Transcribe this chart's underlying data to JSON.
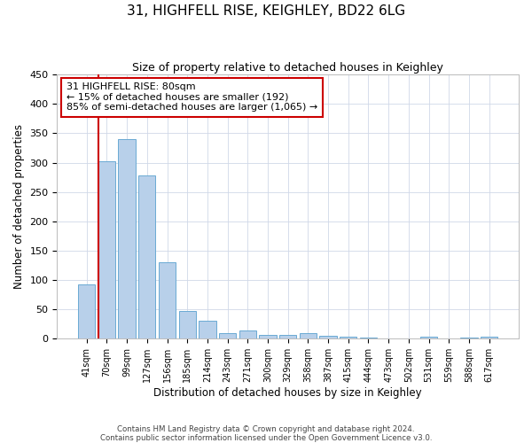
{
  "title": "31, HIGHFELL RISE, KEIGHLEY, BD22 6LG",
  "subtitle": "Size of property relative to detached houses in Keighley",
  "xlabel": "Distribution of detached houses by size in Keighley",
  "ylabel": "Number of detached properties",
  "categories": [
    "41sqm",
    "70sqm",
    "99sqm",
    "127sqm",
    "156sqm",
    "185sqm",
    "214sqm",
    "243sqm",
    "271sqm",
    "300sqm",
    "329sqm",
    "358sqm",
    "387sqm",
    "415sqm",
    "444sqm",
    "473sqm",
    "502sqm",
    "531sqm",
    "559sqm",
    "588sqm",
    "617sqm"
  ],
  "values": [
    92,
    303,
    340,
    278,
    131,
    47,
    31,
    10,
    14,
    6,
    6,
    10,
    5,
    3,
    2,
    0,
    0,
    3,
    0,
    2,
    3
  ],
  "bar_color": "#b8d0ea",
  "bar_edge_color": "#6aaad4",
  "grid_color": "#d0d8e8",
  "vline_color": "#cc0000",
  "annotation_text": "31 HIGHFELL RISE: 80sqm\n← 15% of detached houses are smaller (192)\n85% of semi-detached houses are larger (1,065) →",
  "annotation_box_color": "#ffffff",
  "annotation_box_edge": "#cc0000",
  "ylim": [
    0,
    450
  ],
  "yticks": [
    0,
    50,
    100,
    150,
    200,
    250,
    300,
    350,
    400,
    450
  ],
  "footnote1": "Contains HM Land Registry data © Crown copyright and database right 2024.",
  "footnote2": "Contains public sector information licensed under the Open Government Licence v3.0."
}
